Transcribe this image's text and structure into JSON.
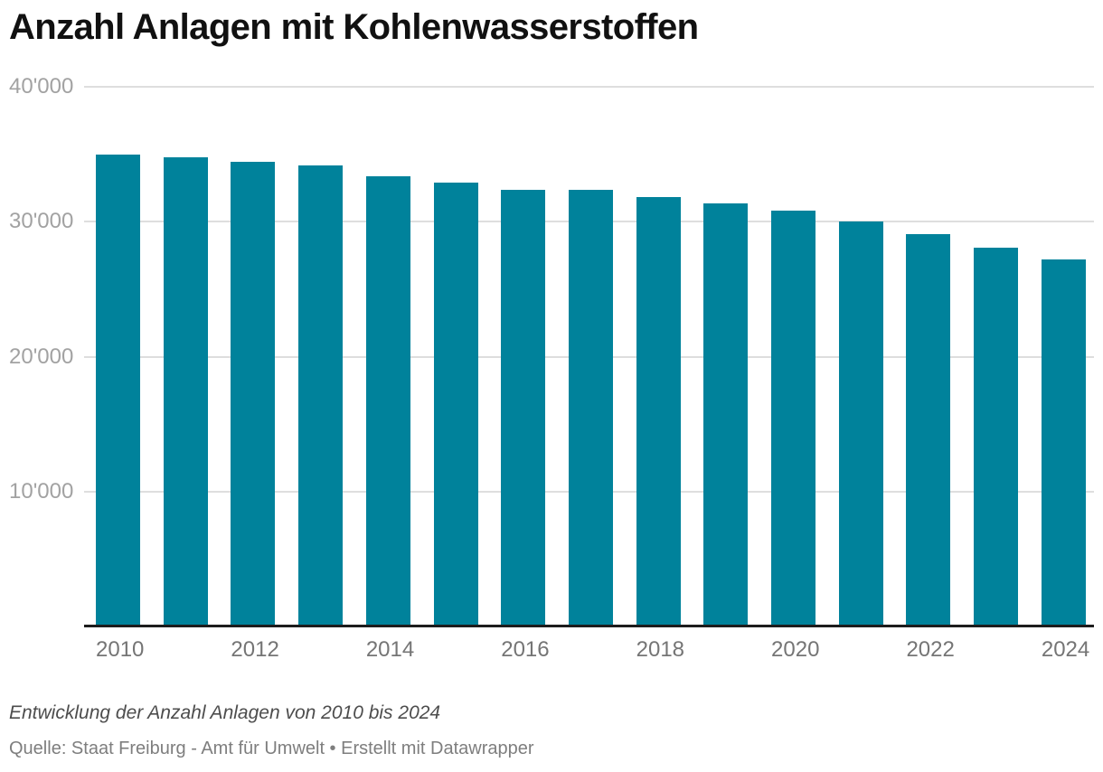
{
  "title": "Anzahl Anlagen mit Kohlenwasserstoffen",
  "notes": "Entwicklung der Anzahl Anlagen von 2010 bis 2024",
  "source": "Quelle: Staat Freiburg - Amt für Umwelt • Erstellt mit Datawrapper",
  "colors": {
    "background": "#ffffff",
    "bar": "#00829B",
    "grid_line": "#dedede",
    "axis_line": "#1d1d1d",
    "title_text": "#111111",
    "y_tick_label": "#a2a2a2",
    "x_tick_label": "#757575",
    "notes_text": "#4d4d4d",
    "source_text": "#7e7e7e"
  },
  "chart_data": {
    "type": "bar",
    "title": "Anzahl Anlagen mit Kohlenwasserstoffen",
    "categories": [
      "2010",
      "2011",
      "2012",
      "2013",
      "2014",
      "2015",
      "2016",
      "2017",
      "2018",
      "2019",
      "2020",
      "2021",
      "2022",
      "2023",
      "2024"
    ],
    "values": [
      35000,
      34800,
      34450,
      34150,
      33400,
      32900,
      32350,
      32350,
      31800,
      31350,
      30850,
      30000,
      29100,
      28050,
      27200
    ],
    "xlabel": "",
    "ylabel": "",
    "ylim": [
      0,
      40000
    ],
    "y_ticks": [
      10000,
      20000,
      30000,
      40000
    ],
    "y_tick_labels": [
      "10'000",
      "20'000",
      "30'000",
      "40'000"
    ],
    "x_tick_labels": [
      "2010",
      "",
      "2012",
      "",
      "2014",
      "",
      "2016",
      "",
      "2018",
      "",
      "2020",
      "",
      "2022",
      "",
      "2024"
    ],
    "grid": "horizontal",
    "legend": "none",
    "bar_color": "#00829B"
  }
}
